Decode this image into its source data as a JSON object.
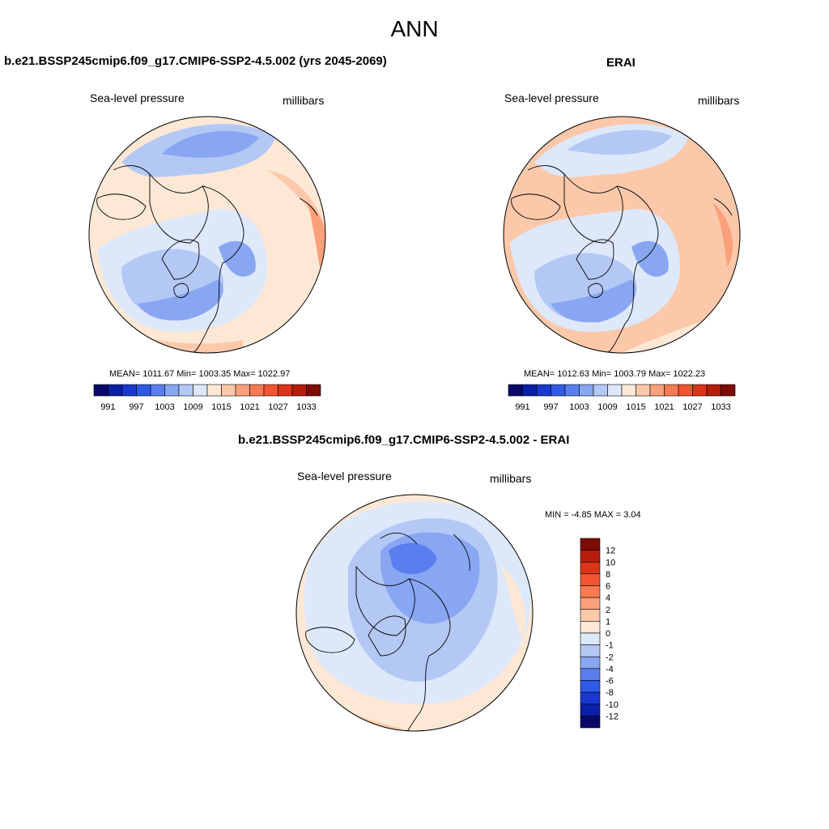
{
  "figure": {
    "title": "ANN"
  },
  "panels": {
    "model": {
      "title": "b.e21.BSSP245cmip6.f09_g17.CMIP6-SSP2-4.5.002 (yrs 2045-2069)",
      "variable": "Sea-level pressure",
      "units": "millibars",
      "stats": "MEAN= 1011.67  Min= 1003.35  Max= 1022.97",
      "mean": 1011.67,
      "min": 1003.35,
      "max": 1022.97
    },
    "obs": {
      "title": "ERAI",
      "variable": "Sea-level pressure",
      "units": "millibars",
      "stats": "MEAN= 1012.63  Min= 1003.79  Max= 1022.23",
      "mean": 1012.63,
      "min": 1003.79,
      "max": 1022.23
    },
    "diff": {
      "title": "b.e21.BSSP245cmip6.f09_g17.CMIP6-SSP2-4.5.002 - ERAI",
      "variable": "Sea-level pressure",
      "units": "millibars",
      "stats": "MIN =  -4.85 MAX =   3.04",
      "min": -4.85,
      "max": 3.04
    }
  },
  "colorbars": {
    "absolute": {
      "labels": [
        "991",
        "997",
        "1003",
        "1009",
        "1015",
        "1021",
        "1027",
        "1033"
      ],
      "colors": [
        "#08086b",
        "#0a1fa8",
        "#1838d0",
        "#2f5ae8",
        "#5a7ef0",
        "#88a6f2",
        "#b4c8f6",
        "#dde8fb",
        "#fde8d6",
        "#fcc8aa",
        "#fba07a",
        "#f87a52",
        "#f25530",
        "#dc3418",
        "#b51e0b",
        "#7d0d05"
      ]
    },
    "difference": {
      "labels": [
        "12",
        "10",
        "8",
        "6",
        "4",
        "2",
        "1",
        "0",
        "-1",
        "-2",
        "-4",
        "-6",
        "-8",
        "-10",
        "-12"
      ],
      "colors": [
        "#7d0d05",
        "#b51e0b",
        "#dc3418",
        "#f25530",
        "#f87a52",
        "#fba07a",
        "#fcc8aa",
        "#fde8d6",
        "#dde8fb",
        "#b4c8f6",
        "#88a6f2",
        "#5a7ef0",
        "#2f5ae8",
        "#1838d0",
        "#0a1fa8",
        "#08086b"
      ]
    }
  }
}
